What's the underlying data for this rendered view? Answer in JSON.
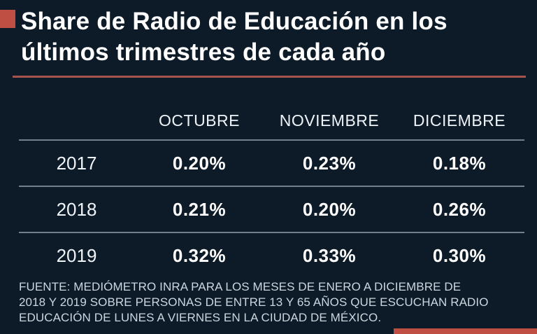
{
  "colors": {
    "background": "#0d1b29",
    "title_text": "#ffffff",
    "header_text": "#eef3f7",
    "value_text": "#ffffff",
    "muted_text": "#ccd6de",
    "divider": "#72808e",
    "accent": "#c04f43",
    "underline": "#a5534c"
  },
  "title": {
    "line1": "Share de Radio de Educación en los",
    "line2": "últimos trimestres de cada año"
  },
  "table": {
    "columns": [
      "OCTUBRE",
      "NOVIEMBRE",
      "DICIEMBRE"
    ],
    "rows": [
      {
        "year": "2017",
        "values": [
          "0.20%",
          "0.23%",
          "0.18%"
        ]
      },
      {
        "year": "2018",
        "values": [
          "0.21%",
          "0.20%",
          "0.26%"
        ]
      },
      {
        "year": "2019",
        "values": [
          "0.32%",
          "0.33%",
          "0.30%"
        ]
      }
    ]
  },
  "source": {
    "line1": "FUENTE: MEDIÓMETRO INRA PARA LOS MESES DE ENERO A DICIEMBRE DE",
    "line2": "2018 Y 2019 SOBRE PERSONAS DE ENTRE 13 Y 65 AÑOS QUE ESCUCHAN RADIO",
    "line3": "EDUCACIÓN DE LUNES A VIERNES EN LA CIUDAD DE MÉXICO."
  },
  "chart_data": {
    "type": "table",
    "title": "Share de Radio de Educación en los últimos trimestres de cada año",
    "categories": [
      "OCTUBRE",
      "NOVIEMBRE",
      "DICIEMBRE"
    ],
    "series": [
      {
        "name": "2017",
        "values": [
          0.2,
          0.23,
          0.18
        ]
      },
      {
        "name": "2018",
        "values": [
          0.21,
          0.2,
          0.26
        ]
      },
      {
        "name": "2019",
        "values": [
          0.32,
          0.33,
          0.3
        ]
      }
    ],
    "unit": "%",
    "source": "FUENTE: MEDIÓMETRO INRA PARA LOS MESES DE ENERO A DICIEMBRE DE 2018 Y 2019 SOBRE PERSONAS DE ENTRE 13 Y 65 AÑOS QUE ESCUCHAN RADIO EDUCACIÓN DE LUNES A VIERNES EN LA CIUDAD DE MÉXICO."
  }
}
